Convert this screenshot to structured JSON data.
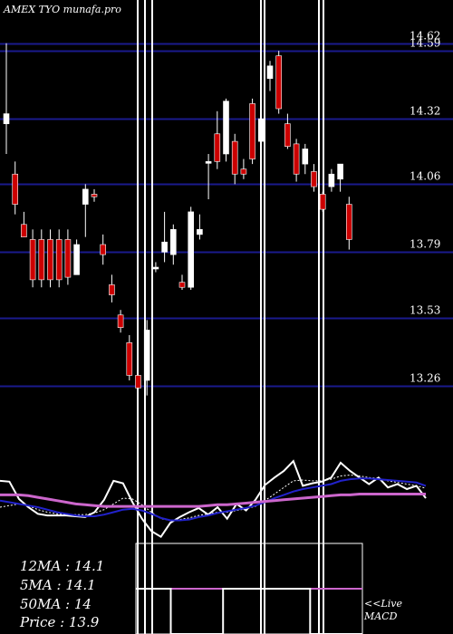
{
  "header": {
    "title": "AMEX  TYO munafa.pro"
  },
  "stats": {
    "ma12": "12MA : 14.1",
    "ma5": "5MA : 14.1",
    "ma50": "50MA : 14",
    "price": "Price   : 13.9"
  },
  "macd_label": {
    "line1": "<<Live",
    "line2": "MACD"
  },
  "colors": {
    "background": "#000000",
    "grid": "#1a1a8c",
    "up": "#ffffff",
    "down": "#cc0000",
    "ma_fast": "#2222cc",
    "ma_slow": "#cc66cc",
    "price_line": "#ffffff"
  },
  "chart_data": {
    "type": "candlestick",
    "y_ticks": [
      "14.62",
      "14.59",
      "14.32",
      "14.06",
      "13.79",
      "13.53",
      "13.26"
    ],
    "y_tick_values": [
      14.62,
      14.59,
      14.32,
      14.06,
      13.79,
      13.53,
      13.26
    ],
    "ylim": [
      13.1,
      14.72
    ],
    "candles": [
      {
        "o": 14.3,
        "h": 14.62,
        "l": 14.18,
        "c": 14.34
      },
      {
        "o": 14.1,
        "h": 14.15,
        "l": 13.94,
        "c": 13.98
      },
      {
        "o": 13.9,
        "h": 13.95,
        "l": 13.85,
        "c": 13.85
      },
      {
        "o": 13.84,
        "h": 13.88,
        "l": 13.65,
        "c": 13.68
      },
      {
        "o": 13.84,
        "h": 13.88,
        "l": 13.65,
        "c": 13.68
      },
      {
        "o": 13.84,
        "h": 13.88,
        "l": 13.65,
        "c": 13.68
      },
      {
        "o": 13.84,
        "h": 13.88,
        "l": 13.65,
        "c": 13.68
      },
      {
        "o": 13.84,
        "h": 13.88,
        "l": 13.66,
        "c": 13.69
      },
      {
        "o": 13.7,
        "h": 13.84,
        "l": 13.7,
        "c": 13.82
      },
      {
        "o": 13.98,
        "h": 14.06,
        "l": 13.85,
        "c": 14.04
      },
      {
        "o": 14.02,
        "h": 14.04,
        "l": 13.99,
        "c": 14.01
      },
      {
        "o": 13.82,
        "h": 13.86,
        "l": 13.74,
        "c": 13.78
      },
      {
        "o": 13.66,
        "h": 13.7,
        "l": 13.59,
        "c": 13.62
      },
      {
        "o": 13.54,
        "h": 13.56,
        "l": 13.47,
        "c": 13.49
      },
      {
        "o": 13.43,
        "h": 13.46,
        "l": 13.28,
        "c": 13.3
      },
      {
        "o": 13.3,
        "h": 13.32,
        "l": 13.21,
        "c": 13.25
      },
      {
        "o": 13.28,
        "h": 13.52,
        "l": 13.22,
        "c": 13.48
      },
      {
        "o": 13.73,
        "h": 13.75,
        "l": 13.71,
        "c": 13.73
      },
      {
        "o": 13.79,
        "h": 13.95,
        "l": 13.75,
        "c": 13.83
      },
      {
        "o": 13.78,
        "h": 13.9,
        "l": 13.74,
        "c": 13.88
      },
      {
        "o": 13.67,
        "h": 13.7,
        "l": 13.64,
        "c": 13.65
      },
      {
        "o": 13.65,
        "h": 13.97,
        "l": 13.64,
        "c": 13.95
      },
      {
        "o": 13.86,
        "h": 13.94,
        "l": 13.84,
        "c": 13.88
      },
      {
        "o": 14.15,
        "h": 14.18,
        "l": 14.0,
        "c": 14.15
      },
      {
        "o": 14.26,
        "h": 14.35,
        "l": 14.12,
        "c": 14.15
      },
      {
        "o": 14.18,
        "h": 14.4,
        "l": 14.15,
        "c": 14.39
      },
      {
        "o": 14.23,
        "h": 14.26,
        "l": 14.06,
        "c": 14.1
      },
      {
        "o": 14.12,
        "h": 14.16,
        "l": 14.08,
        "c": 14.1
      },
      {
        "o": 14.38,
        "h": 14.4,
        "l": 14.14,
        "c": 14.16
      },
      {
        "o": 14.23,
        "h": 14.33,
        "l": 14.2,
        "c": 14.32
      },
      {
        "o": 14.48,
        "h": 14.55,
        "l": 14.43,
        "c": 14.53
      },
      {
        "o": 14.57,
        "h": 14.59,
        "l": 14.34,
        "c": 14.36
      },
      {
        "o": 14.3,
        "h": 14.34,
        "l": 14.2,
        "c": 14.21
      },
      {
        "o": 14.22,
        "h": 14.24,
        "l": 14.07,
        "c": 14.1
      },
      {
        "o": 14.14,
        "h": 14.22,
        "l": 14.1,
        "c": 14.2
      },
      {
        "o": 14.11,
        "h": 14.14,
        "l": 14.03,
        "c": 14.05
      },
      {
        "o": 14.02,
        "h": 14.03,
        "l": 13.95,
        "c": 13.96
      },
      {
        "o": 14.05,
        "h": 14.12,
        "l": 14.03,
        "c": 14.1
      },
      {
        "o": 14.08,
        "h": 14.14,
        "l": 14.03,
        "c": 14.14
      },
      {
        "o": 13.98,
        "h": 14.01,
        "l": 13.8,
        "c": 13.84
      }
    ],
    "indicator_lines": [
      {
        "name": "",
        "color": "#ffffff",
        "values": [
          0.66,
          0.65,
          0.44,
          0.34,
          0.26,
          0.24,
          0.24,
          0.24,
          0.23,
          0.22,
          0.28,
          0.43,
          0.66,
          0.63,
          0.4,
          0.2,
          0.05,
          -0.02,
          0.15,
          0.22,
          0.28,
          0.33,
          0.25,
          0.34,
          0.2,
          0.38,
          0.3,
          0.43,
          0.61,
          0.7,
          0.78,
          0.9,
          0.6,
          0.63,
          0.65,
          0.7,
          0.88,
          0.78,
          0.7,
          0.62,
          0.7,
          0.58,
          0.62,
          0.56,
          0.6,
          0.45
        ]
      },
      {
        "name": "",
        "color": "#ffffff",
        "dashed": true,
        "values": [
          0.34,
          0.36,
          0.38,
          0.36,
          0.31,
          0.28,
          0.26,
          0.25,
          0.25,
          0.25,
          0.27,
          0.31,
          0.38,
          0.45,
          0.44,
          0.37,
          0.28,
          0.2,
          0.18,
          0.19,
          0.21,
          0.24,
          0.26,
          0.28,
          0.28,
          0.3,
          0.32,
          0.35,
          0.42,
          0.5,
          0.58,
          0.66,
          0.67,
          0.66,
          0.66,
          0.68,
          0.72,
          0.73,
          0.72,
          0.7,
          0.69,
          0.66,
          0.64,
          0.62,
          0.6,
          0.57
        ]
      },
      {
        "name": "",
        "color": "#2222cc",
        "values": [
          0.42,
          0.4,
          0.38,
          0.36,
          0.34,
          0.31,
          0.28,
          0.26,
          0.24,
          0.23,
          0.23,
          0.25,
          0.28,
          0.31,
          0.32,
          0.3,
          0.26,
          0.21,
          0.18,
          0.18,
          0.19,
          0.22,
          0.24,
          0.27,
          0.29,
          0.31,
          0.33,
          0.36,
          0.4,
          0.45,
          0.49,
          0.53,
          0.56,
          0.58,
          0.6,
          0.62,
          0.66,
          0.68,
          0.69,
          0.69,
          0.68,
          0.67,
          0.66,
          0.65,
          0.64,
          0.6
        ]
      },
      {
        "name": "",
        "color": "#cc66cc",
        "values": [
          0.49,
          0.49,
          0.49,
          0.48,
          0.46,
          0.44,
          0.42,
          0.4,
          0.38,
          0.37,
          0.36,
          0.35,
          0.35,
          0.35,
          0.35,
          0.35,
          0.35,
          0.35,
          0.35,
          0.35,
          0.35,
          0.35,
          0.36,
          0.37,
          0.37,
          0.38,
          0.39,
          0.4,
          0.41,
          0.42,
          0.43,
          0.44,
          0.45,
          0.46,
          0.47,
          0.48,
          0.49,
          0.49,
          0.5,
          0.5,
          0.5,
          0.5,
          0.5,
          0.5,
          0.5,
          0.5
        ]
      }
    ],
    "indicator_ylim": [
      -0.1,
      1.0
    ],
    "macd_pulse": [
      1,
      1,
      0,
      0,
      0,
      1,
      1,
      1,
      1,
      1,
      0,
      0,
      0
    ]
  }
}
